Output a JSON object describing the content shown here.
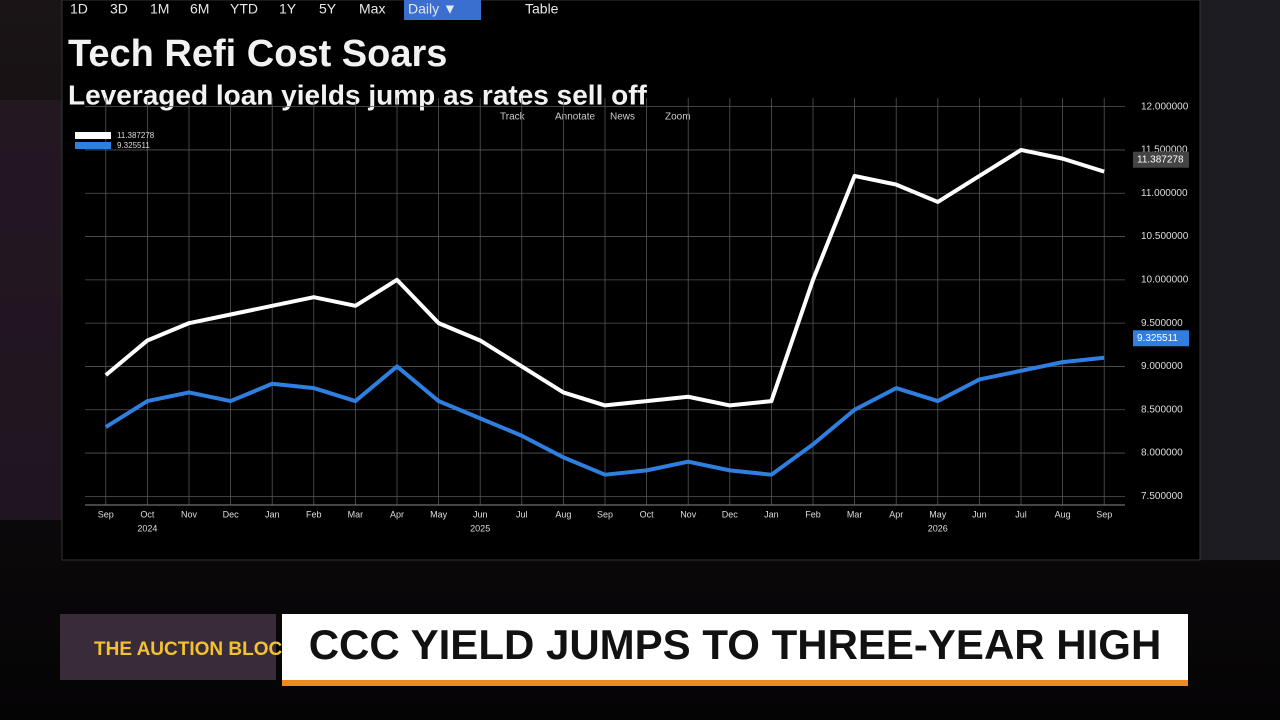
{
  "toolbar": [
    "1D",
    "3D",
    "1M",
    "6M",
    "YTD",
    "1Y",
    "5Y",
    "Max",
    "Daily ▼",
    "Table"
  ],
  "chart_tools": [
    "Track",
    "Annotate",
    "News",
    "Zoom"
  ],
  "lower_third": {
    "show": "THE AUCTION BLOCK",
    "headline": "CCC YIELD JUMPS TO THREE-YEAR HIGH"
  },
  "chart_data": {
    "type": "line",
    "title": "Tech Refi Cost Soars",
    "subtitle": "Leveraged loan yields jump as rates sell off",
    "categories": [
      "Sep",
      "Oct",
      "Nov",
      "Dec",
      "Jan",
      "Feb",
      "Mar",
      "Apr",
      "May",
      "Jun",
      "Jul",
      "Aug",
      "Sep",
      "Oct",
      "Nov",
      "Dec",
      "Jan",
      "Feb",
      "Mar",
      "Apr",
      "May",
      "Jun",
      "Jul",
      "Aug",
      "Sep"
    ],
    "x_years": [
      "2024",
      "2025",
      "2026"
    ],
    "series": [
      {
        "color": "#ffffff",
        "last_value": 11.387278,
        "values": [
          8.9,
          9.3,
          9.5,
          9.6,
          9.7,
          9.8,
          9.7,
          10.0,
          9.5,
          9.3,
          9.0,
          8.7,
          8.55,
          8.6,
          8.65,
          8.55,
          8.6,
          10.0,
          11.2,
          11.1,
          10.9,
          11.2,
          11.5,
          11.4,
          11.25
        ]
      },
      {
        "color": "#2f7fe0",
        "last_value": 9.325511,
        "values": [
          8.3,
          8.6,
          8.7,
          8.6,
          8.8,
          8.75,
          8.6,
          9.0,
          8.6,
          8.4,
          8.2,
          7.95,
          7.75,
          7.8,
          7.9,
          7.8,
          7.75,
          8.1,
          8.5,
          8.75,
          8.6,
          8.85,
          8.95,
          9.05,
          9.1
        ]
      }
    ],
    "ylim": [
      7.4,
      12.1
    ],
    "yticks": [
      {
        "value": 7.5,
        "label": "7.500000"
      },
      {
        "value": 8.0,
        "label": "8.000000"
      },
      {
        "value": 8.5,
        "label": "8.500000"
      },
      {
        "value": 9.0,
        "label": "9.000000"
      },
      {
        "value": 9.5,
        "label": "9.500000"
      },
      {
        "value": 10.0,
        "label": "10.000000"
      },
      {
        "value": 10.5,
        "label": "10.500000"
      },
      {
        "value": 11.0,
        "label": "11.000000"
      },
      {
        "value": 11.5,
        "label": "11.500000"
      },
      {
        "value": 12.0,
        "label": "12.000000"
      }
    ],
    "grid": true
  }
}
